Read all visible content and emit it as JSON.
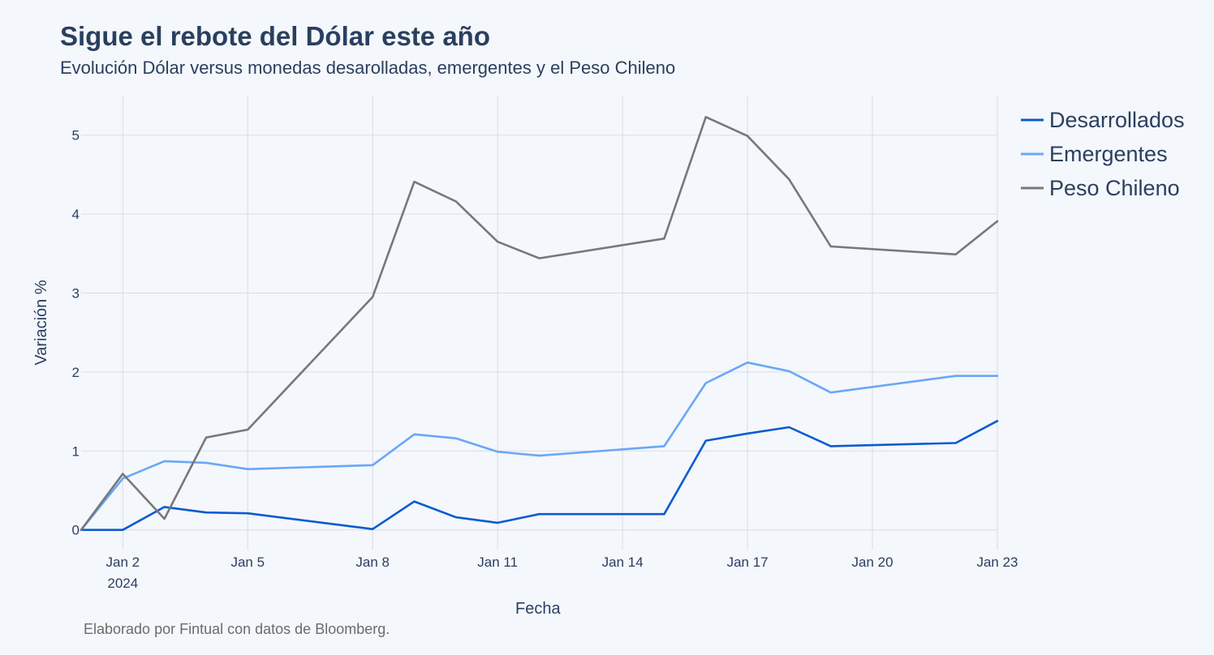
{
  "chart_data": {
    "type": "line",
    "title": "Sigue el rebote del Dólar este año",
    "subtitle": "Evolución Dólar versus monedas desarolladas, emergentes y el Peso Chileno",
    "xlabel": "Fecha",
    "ylabel": "Variación %",
    "source": "Elaborado por Fintual con datos de Bloomberg.",
    "x": [
      "2024-01-01",
      "2024-01-02",
      "2024-01-03",
      "2024-01-04",
      "2024-01-05",
      "2024-01-08",
      "2024-01-09",
      "2024-01-10",
      "2024-01-11",
      "2024-01-12",
      "2024-01-15",
      "2024-01-16",
      "2024-01-17",
      "2024-01-18",
      "2024-01-19",
      "2024-01-22",
      "2024-01-23"
    ],
    "xlim": [
      "2024-01-01",
      "2024-01-23"
    ],
    "ylim": [
      -0.25,
      5.5
    ],
    "x_ticks": [
      {
        "date": "2024-01-02",
        "label": "Jan 2",
        "sublabel": "2024"
      },
      {
        "date": "2024-01-05",
        "label": "Jan 5"
      },
      {
        "date": "2024-01-08",
        "label": "Jan 8"
      },
      {
        "date": "2024-01-11",
        "label": "Jan 11"
      },
      {
        "date": "2024-01-14",
        "label": "Jan 14"
      },
      {
        "date": "2024-01-17",
        "label": "Jan 17"
      },
      {
        "date": "2024-01-20",
        "label": "Jan 20"
      },
      {
        "date": "2024-01-23",
        "label": "Jan 23"
      }
    ],
    "y_ticks": [
      0,
      1,
      2,
      3,
      4,
      5
    ],
    "grid": true,
    "legend": "right",
    "series": [
      {
        "name": "Desarrollados",
        "color": "#0b5bd0",
        "values": [
          0,
          0,
          0.29,
          0.22,
          0.21,
          0.01,
          0.36,
          0.16,
          0.09,
          0.2,
          0.2,
          1.13,
          1.22,
          1.3,
          1.06,
          1.1,
          1.38
        ]
      },
      {
        "name": "Emergentes",
        "color": "#6aa7f8",
        "values": [
          0,
          0.65,
          0.87,
          0.85,
          0.77,
          0.82,
          1.21,
          1.16,
          0.99,
          0.94,
          1.06,
          1.86,
          2.12,
          2.01,
          1.74,
          1.95,
          1.95
        ]
      },
      {
        "name": "Peso Chileno",
        "color": "#787878",
        "values": [
          0,
          0.71,
          0.14,
          1.17,
          1.27,
          2.95,
          4.41,
          4.16,
          3.65,
          3.44,
          3.69,
          5.23,
          4.99,
          4.44,
          3.59,
          3.49,
          3.91
        ]
      }
    ]
  }
}
